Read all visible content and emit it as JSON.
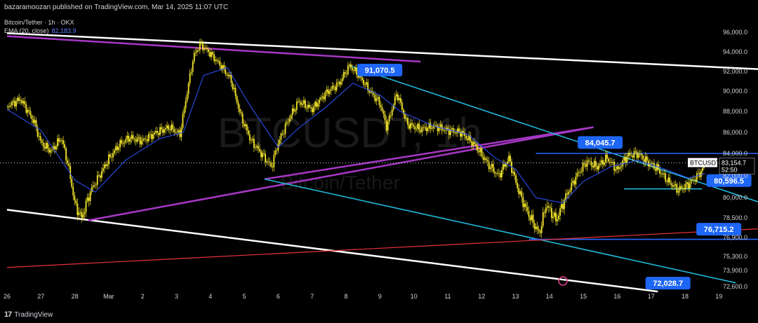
{
  "header": {
    "publisher_line": "bazaramoozan published on TradingView.com, Mar 14, 2025 11:07 UTC",
    "symbol_line": "Bitcoin/Tether · 1h · OKX",
    "ema_label": "EMA (20, close)",
    "ema_value": "82,183.9"
  },
  "watermark": {
    "ticker": "BTCUSDT, 1h",
    "name": "Bitcoin/Tether"
  },
  "brand": {
    "logo_glyph": "17",
    "name": "TradingView"
  },
  "price_badge": {
    "ticker": "BTCUSDT",
    "price": "83,154.7",
    "countdown": "52:50"
  },
  "colors": {
    "background": "#000000",
    "candle": "#f5e72a",
    "ema": "#2f55ff",
    "channel": "#ffffff",
    "triangle": "#a637c4",
    "trend": "#1fb6d6",
    "level": "#2468ff",
    "support": "#e8333c",
    "callout": "#1e66f5"
  },
  "chart_data": {
    "type": "candlestick",
    "x_ticks": [
      "26",
      "27",
      "28",
      "Mar",
      "2",
      "3",
      "4",
      "5",
      "6",
      "7",
      "8",
      "9",
      "10",
      "11",
      "12",
      "13",
      "14",
      "15",
      "16",
      "17",
      "18",
      "19"
    ],
    "y_ticks": [
      96000,
      94000,
      92000,
      90000,
      88000,
      86000,
      84000,
      82000,
      80000,
      78500,
      76900,
      75300,
      73900,
      72600
    ],
    "y_tick_labels": [
      "96,000.0",
      "94,000.0",
      "92,000.0",
      "90,000.0",
      "88,000.0",
      "86,000.0",
      "84,000.0",
      "82,000.0",
      "80,000.0",
      "78,500.0",
      "76,900.0",
      "75,300.0",
      "73,900.0",
      "72,600.0"
    ],
    "price_path": [
      {
        "x": 26.0,
        "y": 88500
      },
      {
        "x": 26.4,
        "y": 89200
      },
      {
        "x": 26.8,
        "y": 87000
      },
      {
        "x": 27.0,
        "y": 85000
      },
      {
        "x": 27.3,
        "y": 84200
      },
      {
        "x": 27.6,
        "y": 85500
      },
      {
        "x": 27.8,
        "y": 83000
      },
      {
        "x": 28.0,
        "y": 79500
      },
      {
        "x": 28.2,
        "y": 78500
      },
      {
        "x": 28.5,
        "y": 80800
      },
      {
        "x": 29.0,
        "y": 83500
      },
      {
        "x": 29.3,
        "y": 84800
      },
      {
        "x": 29.6,
        "y": 85500
      },
      {
        "x": 30.0,
        "y": 85200
      },
      {
        "x": 30.4,
        "y": 86000
      },
      {
        "x": 30.8,
        "y": 86500
      },
      {
        "x": 31.1,
        "y": 85800
      },
      {
        "x": 31.5,
        "y": 93500
      },
      {
        "x": 31.7,
        "y": 94800
      },
      {
        "x": 32.0,
        "y": 93800
      },
      {
        "x": 32.3,
        "y": 92600
      },
      {
        "x": 32.6,
        "y": 91200
      },
      {
        "x": 32.9,
        "y": 87500
      },
      {
        "x": 33.2,
        "y": 85200
      },
      {
        "x": 33.5,
        "y": 84000
      },
      {
        "x": 33.8,
        "y": 82800
      },
      {
        "x": 34.0,
        "y": 85000
      },
      {
        "x": 34.3,
        "y": 87200
      },
      {
        "x": 34.6,
        "y": 89000
      },
      {
        "x": 35.0,
        "y": 88200
      },
      {
        "x": 35.4,
        "y": 89800
      },
      {
        "x": 35.8,
        "y": 90800
      },
      {
        "x": 36.1,
        "y": 92600
      },
      {
        "x": 36.4,
        "y": 91500
      },
      {
        "x": 36.7,
        "y": 90000
      },
      {
        "x": 37.0,
        "y": 88800
      },
      {
        "x": 37.2,
        "y": 86500
      },
      {
        "x": 37.5,
        "y": 89800
      },
      {
        "x": 37.8,
        "y": 86800
      },
      {
        "x": 38.2,
        "y": 86300
      },
      {
        "x": 38.6,
        "y": 86600
      },
      {
        "x": 39.0,
        "y": 86200
      },
      {
        "x": 39.4,
        "y": 86000
      },
      {
        "x": 39.8,
        "y": 84800
      },
      {
        "x": 40.2,
        "y": 83000
      },
      {
        "x": 40.5,
        "y": 82000
      },
      {
        "x": 40.8,
        "y": 83600
      },
      {
        "x": 41.1,
        "y": 80500
      },
      {
        "x": 41.3,
        "y": 79200
      },
      {
        "x": 41.5,
        "y": 78200
      },
      {
        "x": 41.7,
        "y": 77200
      },
      {
        "x": 41.9,
        "y": 79500
      },
      {
        "x": 42.2,
        "y": 78300
      },
      {
        "x": 42.5,
        "y": 80200
      },
      {
        "x": 42.8,
        "y": 82000
      },
      {
        "x": 43.1,
        "y": 83300
      },
      {
        "x": 43.4,
        "y": 82800
      },
      {
        "x": 43.7,
        "y": 83600
      },
      {
        "x": 44.0,
        "y": 82500
      },
      {
        "x": 44.3,
        "y": 83800
      },
      {
        "x": 44.6,
        "y": 84000
      },
      {
        "x": 44.9,
        "y": 83200
      },
      {
        "x": 45.2,
        "y": 82600
      },
      {
        "x": 45.5,
        "y": 81500
      },
      {
        "x": 45.8,
        "y": 80700
      },
      {
        "x": 46.1,
        "y": 81200
      },
      {
        "x": 46.4,
        "y": 82100
      },
      {
        "x": 46.6,
        "y": 83000
      }
    ],
    "ema_path": [
      {
        "x": 26.0,
        "y": 88200
      },
      {
        "x": 27.0,
        "y": 86200
      },
      {
        "x": 28.0,
        "y": 81600
      },
      {
        "x": 28.6,
        "y": 80500
      },
      {
        "x": 29.5,
        "y": 83400
      },
      {
        "x": 30.5,
        "y": 85400
      },
      {
        "x": 31.2,
        "y": 86000
      },
      {
        "x": 31.8,
        "y": 91600
      },
      {
        "x": 32.5,
        "y": 92400
      },
      {
        "x": 33.2,
        "y": 88400
      },
      {
        "x": 34.0,
        "y": 84600
      },
      {
        "x": 34.6,
        "y": 86400
      },
      {
        "x": 35.4,
        "y": 88400
      },
      {
        "x": 36.2,
        "y": 90800
      },
      {
        "x": 37.0,
        "y": 89600
      },
      {
        "x": 37.6,
        "y": 88000
      },
      {
        "x": 38.6,
        "y": 86600
      },
      {
        "x": 39.6,
        "y": 85800
      },
      {
        "x": 40.4,
        "y": 83600
      },
      {
        "x": 41.0,
        "y": 82600
      },
      {
        "x": 41.6,
        "y": 80000
      },
      {
        "x": 42.4,
        "y": 79600
      },
      {
        "x": 43.0,
        "y": 81500
      },
      {
        "x": 43.8,
        "y": 82800
      },
      {
        "x": 44.6,
        "y": 83400
      },
      {
        "x": 45.4,
        "y": 82600
      },
      {
        "x": 46.1,
        "y": 81800
      },
      {
        "x": 46.6,
        "y": 82200
      }
    ],
    "callouts": [
      {
        "label": "91,070.5",
        "x": 36.5,
        "y": 91070.5
      },
      {
        "label": "84,045.7",
        "x": 43.0,
        "y": 84045.7
      },
      {
        "label": "80,596.5",
        "x": 46.8,
        "y": 80596.5
      },
      {
        "label": "76,715.2",
        "x": 46.5,
        "y": 76715.2
      },
      {
        "label": "72,028.7",
        "x": 45.0,
        "y": 72028.7
      }
    ],
    "lines": [
      {
        "name": "channel-upper",
        "color": "channel",
        "from": {
          "x": 26.0,
          "y": 95900
        },
        "to": {
          "x": 50.2,
          "y": 91900
        }
      },
      {
        "name": "channel-lower",
        "color": "channel",
        "from": {
          "x": 26.0,
          "y": 79100
        },
        "to": {
          "x": 45.2,
          "y": 72200
        }
      },
      {
        "name": "triangle-upper",
        "color": "triangle",
        "from": {
          "x": 26.0,
          "y": 95600
        },
        "to": {
          "x": 38.2,
          "y": 93000
        }
      },
      {
        "name": "triangle-lower",
        "color": "triangle",
        "from": {
          "x": 28.4,
          "y": 78300
        },
        "to": {
          "x": 43.3,
          "y": 86500
        }
      },
      {
        "name": "triangle-mid",
        "color": "triangle",
        "from": {
          "x": 33.6,
          "y": 81700
        },
        "to": {
          "x": 43.3,
          "y": 86500
        }
      },
      {
        "name": "trend-upper",
        "color": "trend",
        "from": {
          "x": 36.1,
          "y": 92600
        },
        "to": {
          "x": 48.5,
          "y": 79400
        }
      },
      {
        "name": "trend-lower",
        "color": "trend",
        "from": {
          "x": 33.6,
          "y": 81700
        },
        "to": {
          "x": 47.5,
          "y": 72900
        }
      },
      {
        "name": "resistance-84k",
        "color": "level",
        "from": {
          "x": 41.6,
          "y": 84000
        },
        "to": {
          "x": 48.5,
          "y": 84000
        }
      },
      {
        "name": "support-80-8k",
        "color": "trend",
        "from": {
          "x": 44.2,
          "y": 80800
        },
        "to": {
          "x": 46.5,
          "y": 80800
        }
      },
      {
        "name": "support-76-7k",
        "color": "level",
        "from": {
          "x": 41.4,
          "y": 76750
        },
        "to": {
          "x": 48.5,
          "y": 76750
        }
      },
      {
        "name": "red-support",
        "color": "support",
        "from": {
          "x": 26.0,
          "y": 74200
        },
        "to": {
          "x": 50.2,
          "y": 77900
        }
      }
    ],
    "current_price": 83154.7,
    "grid": false,
    "legend": "top-left"
  }
}
